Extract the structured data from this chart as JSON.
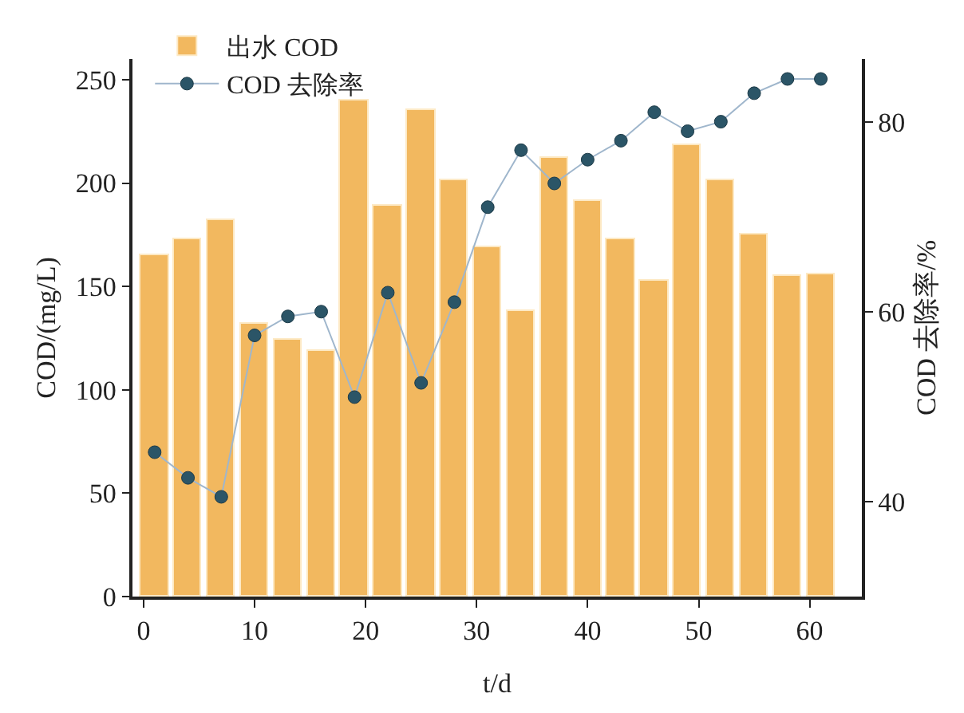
{
  "chart_data": {
    "type": "bar",
    "xlabel": "t/d",
    "ylabel": "COD/(mg/L)",
    "y2label": "COD 去除率/%",
    "x": [
      1,
      4,
      7,
      10,
      13,
      16,
      19,
      22,
      25,
      28,
      31,
      34,
      37,
      40,
      43,
      46,
      49,
      52,
      55,
      58,
      61
    ],
    "series": [
      {
        "name": "出水 COD",
        "color": "#f2b85f",
        "values": [
          165,
          173,
          182,
          132,
          124,
          119,
          240,
          189,
          235,
          201,
          169,
          138,
          212,
          191,
          173,
          153,
          218,
          201,
          175,
          155,
          156
        ]
      },
      {
        "name": "COD 去除率",
        "type": "line",
        "axis": "y2",
        "color": "#2b5567",
        "marker": "circle",
        "line_style": "solid",
        "values": [
          45.2,
          42.5,
          40.5,
          57.5,
          59.5,
          60,
          51,
          62,
          52.5,
          61,
          71,
          77,
          73.5,
          76,
          78,
          81,
          79,
          80,
          83,
          84.5,
          84.5
        ]
      }
    ],
    "xlim": [
      -1,
      64.7
    ],
    "xticks": [
      0,
      10,
      20,
      30,
      40,
      50,
      60
    ],
    "ylim": [
      0,
      260
    ],
    "yticks": [
      0,
      50,
      100,
      150,
      200,
      250
    ],
    "y2lim": [
      30,
      86.6
    ],
    "y2ticks": [
      40,
      60,
      80
    ],
    "legend": "top left"
  }
}
